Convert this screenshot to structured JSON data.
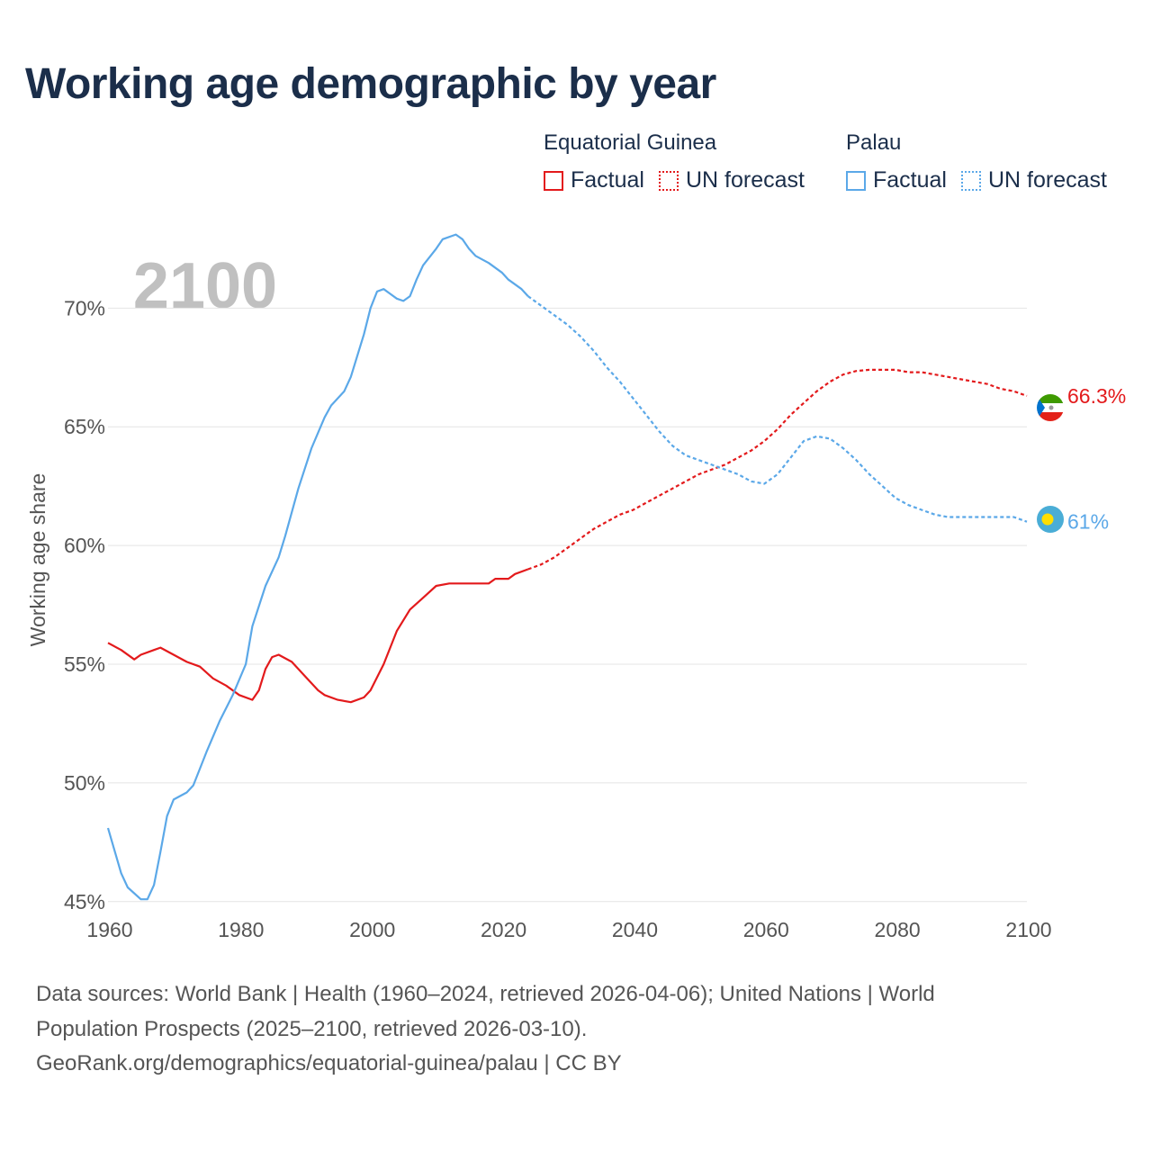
{
  "title": "Working age demographic by year",
  "year_watermark": "2100",
  "legend": [
    {
      "name": "Equatorial Guinea",
      "color": "#e31a1c",
      "factual_label": "Factual",
      "forecast_label": "UN forecast"
    },
    {
      "name": "Palau",
      "color": "#5ba8e8",
      "factual_label": "Factual",
      "forecast_label": "UN forecast"
    }
  ],
  "chart_data": {
    "type": "line",
    "title": "Working age demographic by year",
    "xlabel": "",
    "ylabel": "Working age share",
    "xlim": [
      1960,
      2100
    ],
    "ylim": [
      44.5,
      73.5
    ],
    "xticks": [
      1960,
      1980,
      2000,
      2020,
      2040,
      2060,
      2080,
      2100
    ],
    "yticks": [
      45,
      50,
      55,
      60,
      65,
      70
    ],
    "ytick_labels": [
      "45%",
      "50%",
      "55%",
      "60%",
      "65%",
      "70%"
    ],
    "grid": true,
    "factual_end_year": 2024,
    "series": [
      {
        "name": "Equatorial Guinea",
        "color": "#e31a1c",
        "end_label": "66.3%",
        "points": [
          [
            1960,
            55.9
          ],
          [
            1962,
            55.6
          ],
          [
            1964,
            55.2
          ],
          [
            1965,
            55.4
          ],
          [
            1967,
            55.6
          ],
          [
            1968,
            55.7
          ],
          [
            1970,
            55.4
          ],
          [
            1972,
            55.1
          ],
          [
            1974,
            54.9
          ],
          [
            1976,
            54.4
          ],
          [
            1978,
            54.1
          ],
          [
            1980,
            53.7
          ],
          [
            1982,
            53.5
          ],
          [
            1983,
            53.9
          ],
          [
            1984,
            54.8
          ],
          [
            1985,
            55.3
          ],
          [
            1986,
            55.4
          ],
          [
            1988,
            55.1
          ],
          [
            1990,
            54.5
          ],
          [
            1992,
            53.9
          ],
          [
            1993,
            53.7
          ],
          [
            1995,
            53.5
          ],
          [
            1997,
            53.4
          ],
          [
            1999,
            53.6
          ],
          [
            2000,
            53.9
          ],
          [
            2002,
            55.0
          ],
          [
            2004,
            56.4
          ],
          [
            2006,
            57.3
          ],
          [
            2008,
            57.8
          ],
          [
            2010,
            58.3
          ],
          [
            2012,
            58.4
          ],
          [
            2014,
            58.4
          ],
          [
            2016,
            58.4
          ],
          [
            2018,
            58.4
          ],
          [
            2019,
            58.6
          ],
          [
            2021,
            58.6
          ],
          [
            2022,
            58.8
          ],
          [
            2024,
            59.0
          ],
          [
            2026,
            59.2
          ],
          [
            2028,
            59.5
          ],
          [
            2030,
            59.9
          ],
          [
            2032,
            60.3
          ],
          [
            2034,
            60.7
          ],
          [
            2036,
            61.0
          ],
          [
            2038,
            61.3
          ],
          [
            2040,
            61.5
          ],
          [
            2042,
            61.8
          ],
          [
            2044,
            62.1
          ],
          [
            2046,
            62.4
          ],
          [
            2048,
            62.7
          ],
          [
            2050,
            63.0
          ],
          [
            2052,
            63.2
          ],
          [
            2054,
            63.4
          ],
          [
            2056,
            63.7
          ],
          [
            2058,
            64.0
          ],
          [
            2060,
            64.4
          ],
          [
            2062,
            64.9
          ],
          [
            2064,
            65.5
          ],
          [
            2066,
            66.0
          ],
          [
            2068,
            66.5
          ],
          [
            2070,
            66.9
          ],
          [
            2072,
            67.2
          ],
          [
            2074,
            67.35
          ],
          [
            2076,
            67.4
          ],
          [
            2078,
            67.4
          ],
          [
            2080,
            67.4
          ],
          [
            2082,
            67.3
          ],
          [
            2084,
            67.3
          ],
          [
            2086,
            67.2
          ],
          [
            2088,
            67.1
          ],
          [
            2090,
            67.0
          ],
          [
            2092,
            66.9
          ],
          [
            2094,
            66.8
          ],
          [
            2096,
            66.6
          ],
          [
            2098,
            66.5
          ],
          [
            2100,
            66.3
          ]
        ]
      },
      {
        "name": "Palau",
        "color": "#5ba8e8",
        "end_label": "61%",
        "points": [
          [
            1960,
            48.1
          ],
          [
            1962,
            46.2
          ],
          [
            1963,
            45.6
          ],
          [
            1965,
            45.1
          ],
          [
            1966,
            45.1
          ],
          [
            1967,
            45.7
          ],
          [
            1968,
            47.1
          ],
          [
            1969,
            48.6
          ],
          [
            1970,
            49.3
          ],
          [
            1972,
            49.6
          ],
          [
            1973,
            49.9
          ],
          [
            1975,
            51.3
          ],
          [
            1977,
            52.6
          ],
          [
            1979,
            53.7
          ],
          [
            1981,
            55.0
          ],
          [
            1982,
            56.6
          ],
          [
            1984,
            58.3
          ],
          [
            1986,
            59.5
          ],
          [
            1987,
            60.4
          ],
          [
            1989,
            62.4
          ],
          [
            1991,
            64.1
          ],
          [
            1993,
            65.4
          ],
          [
            1994,
            65.9
          ],
          [
            1996,
            66.5
          ],
          [
            1997,
            67.1
          ],
          [
            1999,
            68.9
          ],
          [
            2000,
            70.0
          ],
          [
            2001,
            70.7
          ],
          [
            2002,
            70.8
          ],
          [
            2003,
            70.6
          ],
          [
            2004,
            70.4
          ],
          [
            2005,
            70.3
          ],
          [
            2006,
            70.5
          ],
          [
            2007,
            71.2
          ],
          [
            2008,
            71.8
          ],
          [
            2010,
            72.5
          ],
          [
            2011,
            72.9
          ],
          [
            2013,
            73.1
          ],
          [
            2014,
            72.9
          ],
          [
            2015,
            72.5
          ],
          [
            2016,
            72.2
          ],
          [
            2018,
            71.9
          ],
          [
            2020,
            71.5
          ],
          [
            2021,
            71.2
          ],
          [
            2023,
            70.8
          ],
          [
            2024,
            70.5
          ],
          [
            2026,
            70.1
          ],
          [
            2028,
            69.7
          ],
          [
            2030,
            69.3
          ],
          [
            2032,
            68.8
          ],
          [
            2034,
            68.2
          ],
          [
            2036,
            67.5
          ],
          [
            2038,
            66.9
          ],
          [
            2040,
            66.2
          ],
          [
            2042,
            65.5
          ],
          [
            2044,
            64.8
          ],
          [
            2046,
            64.2
          ],
          [
            2048,
            63.8
          ],
          [
            2050,
            63.6
          ],
          [
            2052,
            63.4
          ],
          [
            2054,
            63.2
          ],
          [
            2056,
            63.0
          ],
          [
            2058,
            62.7
          ],
          [
            2060,
            62.6
          ],
          [
            2062,
            63.0
          ],
          [
            2064,
            63.7
          ],
          [
            2066,
            64.4
          ],
          [
            2068,
            64.6
          ],
          [
            2070,
            64.5
          ],
          [
            2072,
            64.1
          ],
          [
            2074,
            63.6
          ],
          [
            2076,
            63.0
          ],
          [
            2078,
            62.5
          ],
          [
            2080,
            62.0
          ],
          [
            2082,
            61.7
          ],
          [
            2084,
            61.5
          ],
          [
            2086,
            61.3
          ],
          [
            2088,
            61.2
          ],
          [
            2090,
            61.2
          ],
          [
            2092,
            61.2
          ],
          [
            2094,
            61.2
          ],
          [
            2096,
            61.2
          ],
          [
            2098,
            61.2
          ],
          [
            2100,
            61.0
          ]
        ]
      }
    ]
  },
  "sources": {
    "line1": "Data sources: World Bank | Health (1960–2024, retrieved 2026-04-06); United Nations | World",
    "line2": "Population Prospects (2025–2100, retrieved 2026-03-10).",
    "line3": "GeoRank.org/demographics/equatorial-guinea/palau | CC BY"
  }
}
